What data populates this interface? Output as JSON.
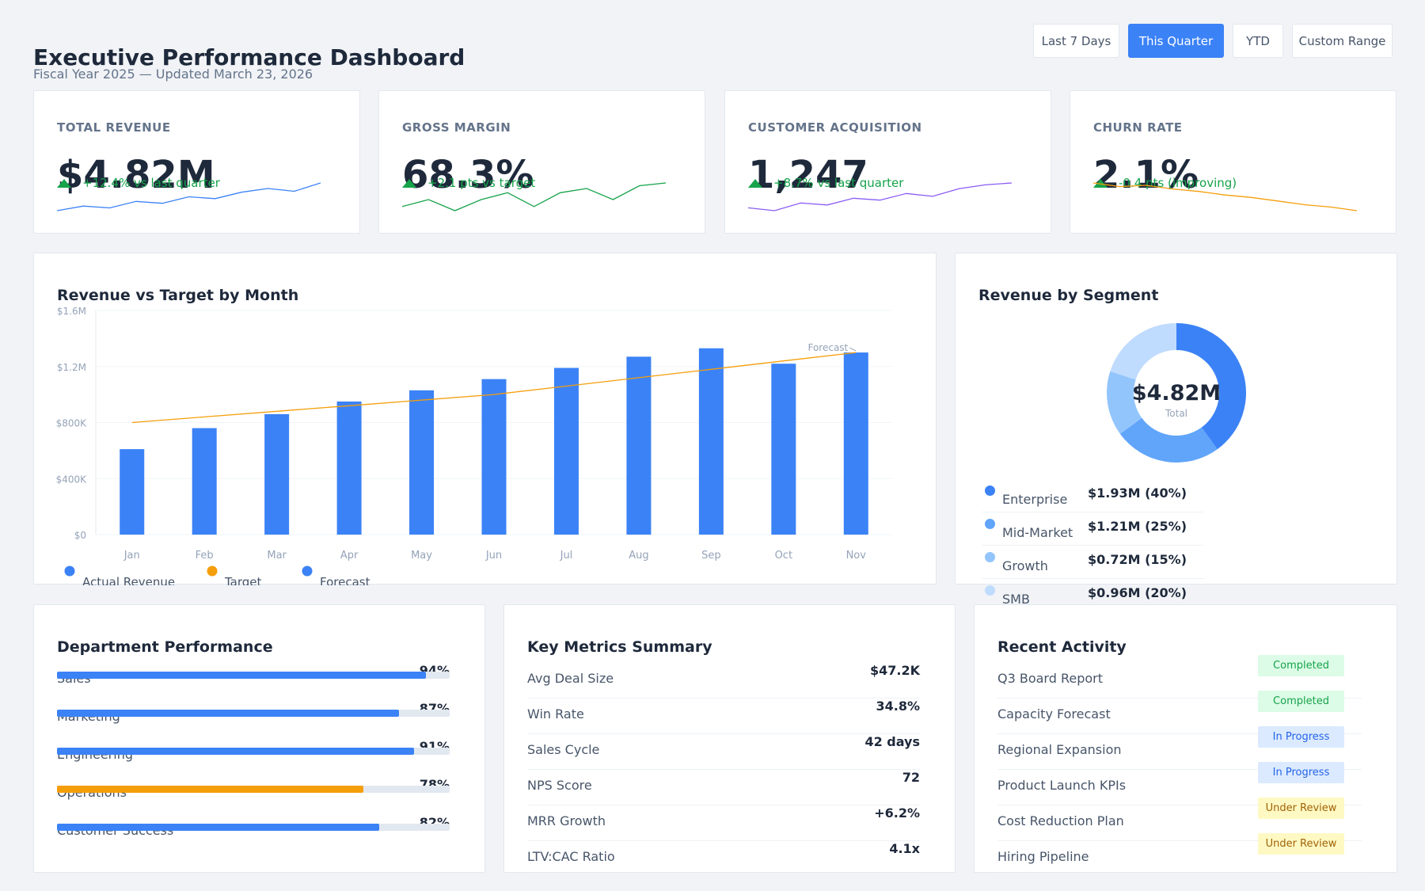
{
  "header": {
    "title": "Executive Performance Dashboard",
    "subtitle": "Fiscal Year 2025 — Updated March 23, 2026"
  },
  "ranges": {
    "last7": "Last 7 Days",
    "quarter": "This Quarter",
    "ytd": "YTD",
    "custom": "Custom Range",
    "active": "This Quarter"
  },
  "kpis": [
    {
      "label": "TOTAL REVENUE",
      "value": "$4.82M",
      "delta": "+12.4% vs last quarter",
      "color": "#3b82f6",
      "trend": [
        3,
        4,
        3.6,
        5,
        4.6,
        6,
        5.6,
        7,
        7.8,
        7.2,
        9
      ]
    },
    {
      "label": "GROSS MARGIN",
      "value": "68.3%",
      "delta": "+2.1 pts vs target",
      "color": "#16a34a",
      "trend": [
        3,
        4,
        2.4,
        4,
        5,
        3,
        5,
        5.6,
        4,
        6,
        6.4
      ]
    },
    {
      "label": "CUSTOMER ACQUISITION",
      "value": "1,247",
      "delta": "+8.7% vs last quarter",
      "color": "#8b5cf6",
      "trend": [
        2,
        1.4,
        3,
        2.6,
        4,
        3.6,
        5,
        4.4,
        6,
        6.8,
        7.2
      ]
    },
    {
      "label": "CHURN RATE",
      "value": "2.1%",
      "delta": "-0.4 pts (improving)",
      "color": "#f59e0b",
      "trend": [
        9,
        8.4,
        8.6,
        8,
        7.6,
        7,
        6.6,
        6,
        5.4,
        5,
        4.4
      ]
    }
  ],
  "revenue_chart": {
    "title": "Revenue vs Target by Month",
    "legend": {
      "actual": "Actual Revenue",
      "target": "Target",
      "forecast": "Forecast"
    },
    "forecast_label": "Forecast",
    "colors": {
      "actual": "#3b82f6",
      "target": "#f59e0b",
      "forecast": "#3b82f6"
    }
  },
  "chart_data": [
    {
      "type": "bar",
      "title": "Revenue vs Target by Month",
      "categories": [
        "Jan",
        "Feb",
        "Mar",
        "Apr",
        "May",
        "Jun",
        "Jul",
        "Aug",
        "Sep",
        "Oct",
        "Nov"
      ],
      "series": [
        {
          "name": "Actual Revenue",
          "values": [
            610000,
            760000,
            860000,
            950000,
            1030000,
            1110000,
            1190000,
            1270000,
            1330000,
            1220000,
            1300000
          ]
        },
        {
          "name": "Target",
          "values": [
            800000,
            840000,
            880000,
            920000,
            960000,
            1000000,
            1060000,
            1120000,
            1180000,
            1240000,
            1300000
          ]
        }
      ],
      "yticks": [
        "$0",
        "$400K",
        "$800K",
        "$1.2M",
        "$1.6M"
      ],
      "ylim": [
        0,
        1600000
      ],
      "grid": true,
      "legend_position": "bottom-left"
    },
    {
      "type": "pie",
      "title": "Revenue by Segment",
      "categories": [
        "Enterprise",
        "Mid-Market",
        "Growth",
        "SMB"
      ],
      "values": [
        1.93,
        1.21,
        0.72,
        0.96
      ],
      "center_value": "$4.82M",
      "center_label": "Total"
    }
  ],
  "segments": {
    "title": "Revenue by Segment",
    "center_value": "$4.82M",
    "center_label": "Total",
    "items": [
      {
        "name": "Enterprise",
        "value": "$1.93M (40%)",
        "color": "#3b82f6",
        "share": 40
      },
      {
        "name": "Mid-Market",
        "value": "$1.21M (25%)",
        "color": "#60a5fa",
        "share": 25
      },
      {
        "name": "Growth",
        "value": "$0.72M (15%)",
        "color": "#93c5fd",
        "share": 15
      },
      {
        "name": "SMB",
        "value": "$0.96M (20%)",
        "color": "#bfdbfe",
        "share": 20
      }
    ]
  },
  "departments": {
    "title": "Department Performance",
    "items": [
      {
        "name": "Sales",
        "pct": "94%",
        "value": 94,
        "color": "#3b82f6"
      },
      {
        "name": "Marketing",
        "pct": "87%",
        "value": 87,
        "color": "#3b82f6"
      },
      {
        "name": "Engineering",
        "pct": "91%",
        "value": 91,
        "color": "#3b82f6"
      },
      {
        "name": "Operations",
        "pct": "78%",
        "value": 78,
        "color": "#f59e0b"
      },
      {
        "name": "Customer Success",
        "pct": "82%",
        "value": 82,
        "color": "#3b82f6"
      }
    ]
  },
  "metrics": {
    "title": "Key Metrics Summary",
    "items": [
      {
        "name": "Avg Deal Size",
        "value": "$47.2K"
      },
      {
        "name": "Win Rate",
        "value": "34.8%"
      },
      {
        "name": "Sales Cycle",
        "value": "42 days"
      },
      {
        "name": "NPS Score",
        "value": "72"
      },
      {
        "name": "MRR Growth",
        "value": "+6.2%"
      },
      {
        "name": "LTV:CAC Ratio",
        "value": "4.1x"
      }
    ]
  },
  "activity": {
    "title": "Recent Activity",
    "items": [
      {
        "name": "Q3 Board Report",
        "status": "Completed",
        "kind": "completed"
      },
      {
        "name": "Capacity Forecast",
        "status": "Completed",
        "kind": "completed"
      },
      {
        "name": "Regional Expansion",
        "status": "In Progress",
        "kind": "progress"
      },
      {
        "name": "Product Launch KPIs",
        "status": "In Progress",
        "kind": "progress"
      },
      {
        "name": "Cost Reduction Plan",
        "status": "Under Review",
        "kind": "review"
      },
      {
        "name": "Hiring Pipeline",
        "status": "Under Review",
        "kind": "review"
      }
    ]
  }
}
